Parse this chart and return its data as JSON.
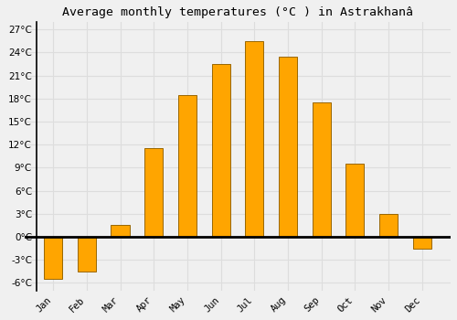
{
  "title": "Average monthly temperatures (°C ) in Astrakhanâ",
  "months": [
    "Jan",
    "Feb",
    "Mar",
    "Apr",
    "May",
    "Jun",
    "Jul",
    "Aug",
    "Sep",
    "Oct",
    "Nov",
    "Dec"
  ],
  "values": [
    -5.5,
    -4.5,
    1.5,
    11.5,
    18.5,
    22.5,
    25.5,
    23.5,
    17.5,
    9.5,
    3.0,
    -1.5
  ],
  "bar_color": "#FFA500",
  "bar_edge_color": "#996600",
  "background_color": "#F0F0F0",
  "grid_color": "#DDDDDD",
  "ylim": [
    -7,
    28
  ],
  "yticks": [
    -6,
    -3,
    0,
    3,
    6,
    9,
    12,
    15,
    18,
    21,
    24,
    27
  ],
  "zero_line_color": "#000000",
  "title_fontsize": 9.5,
  "tick_fontsize": 7.5
}
